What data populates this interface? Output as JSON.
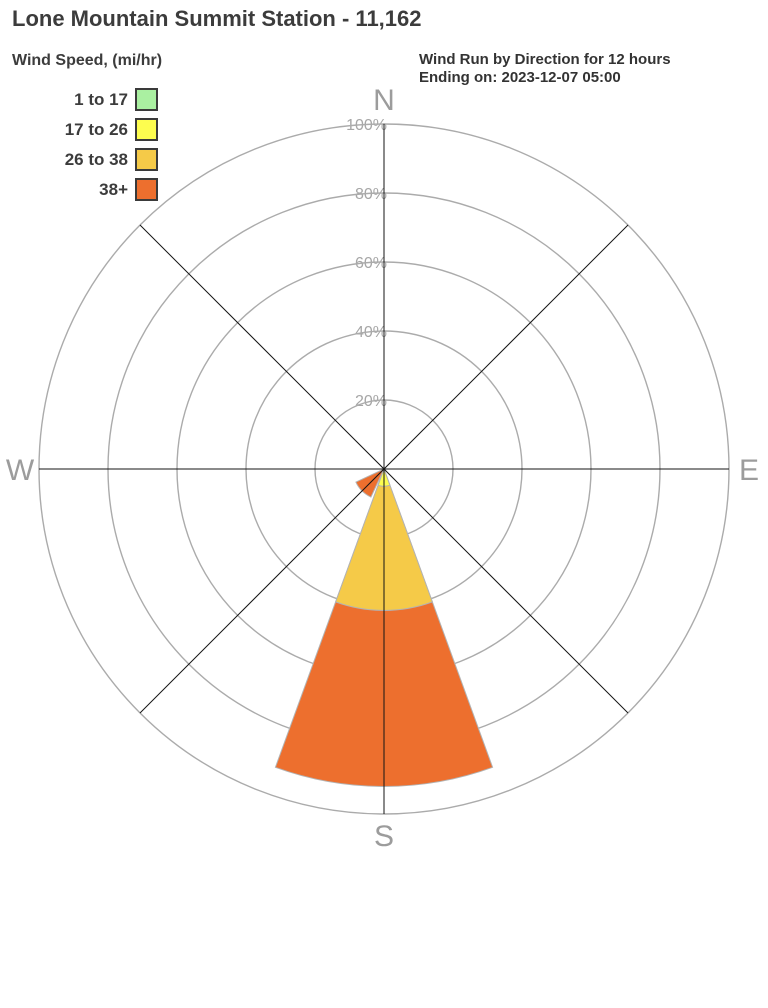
{
  "header": {
    "title": "Lone Mountain Summit Station - 11,162"
  },
  "legend": {
    "title": "Wind Speed, (mi/hr)"
  },
  "chart_data": {
    "type": "wind-rose",
    "title": "Wind Run by Direction for 12 hours",
    "subtitle": "Ending on: 2023-12-07 05:00",
    "units": "percent of wind run",
    "speed_bins": [
      {
        "label": "1 to 17",
        "color": "#aaf0a1"
      },
      {
        "label": "17 to 26",
        "color": "#fdfd4f"
      },
      {
        "label": "26 to 38",
        "color": "#f5ca48"
      },
      {
        "label": "38+",
        "color": "#ed6f2e"
      }
    ],
    "compass": [
      "N",
      "E",
      "S",
      "W"
    ],
    "rings_percent": [
      20,
      40,
      60,
      80,
      100
    ],
    "ring_labels": [
      "20%",
      "40%",
      "60%",
      "80%",
      "100%"
    ],
    "max_percent": 100,
    "sector_width_deg": 40,
    "directions": [
      {
        "dir": "S",
        "bearing_deg": 180,
        "segments_percent": [
          0,
          5,
          36,
          51
        ],
        "total_percent": 92
      },
      {
        "dir": "SW",
        "bearing_deg": 225,
        "segments_percent": [
          0,
          0,
          0,
          9
        ],
        "total_percent": 9
      }
    ],
    "grid_on": true,
    "grid_color": "#ababab",
    "spoke_color": "#141414",
    "tick_label_color": "#a6a6a6",
    "compass_label_color": "#9c9c9c",
    "wedge_stroke_color": "#b3b3b3"
  }
}
